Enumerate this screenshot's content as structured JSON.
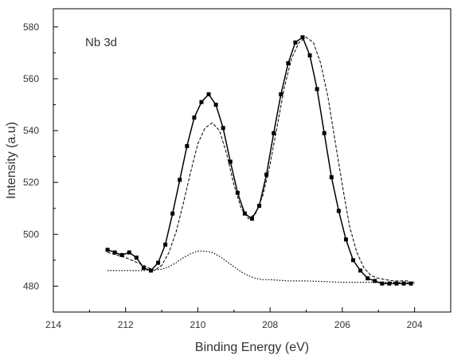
{
  "chart_data": {
    "type": "scatter",
    "title": "",
    "annotation": "Nb 3d",
    "xlabel": "Binding Energy (eV)",
    "ylabel": "Intensity (a.u)",
    "xlim": [
      214,
      203
    ],
    "ylim": [
      470,
      587
    ],
    "x_reversed": true,
    "grid": false,
    "x_ticks": [
      214,
      212,
      210,
      208,
      206,
      204
    ],
    "y_ticks": [
      480,
      500,
      520,
      540,
      560,
      580
    ],
    "series": [
      {
        "style": "markers-with-line",
        "x": [
          212.5,
          212.3,
          212.1,
          211.9,
          211.7,
          211.5,
          211.3,
          211.1,
          210.9,
          210.7,
          210.5,
          210.3,
          210.1,
          209.9,
          209.7,
          209.5,
          209.3,
          209.1,
          208.9,
          208.7,
          208.5,
          208.3,
          208.1,
          207.9,
          207.7,
          207.5,
          207.3,
          207.1,
          206.9,
          206.7,
          206.5,
          206.3,
          206.1,
          205.9,
          205.7,
          205.5,
          205.3,
          205.1,
          204.9,
          204.7,
          204.5,
          204.3,
          204.1
        ],
        "y": [
          494,
          493,
          492,
          493,
          491,
          487,
          486,
          489,
          496,
          508,
          521,
          534,
          545,
          551,
          554,
          550,
          541,
          528,
          516,
          508,
          506,
          511,
          523,
          539,
          554,
          566,
          574,
          576,
          569,
          556,
          539,
          522,
          509,
          498,
          490,
          486,
          483,
          482,
          481,
          481,
          481,
          481,
          481
        ]
      },
      {
        "style": "dashed",
        "x": [
          212.5,
          212.0,
          211.5,
          211.2,
          211.0,
          210.8,
          210.6,
          210.4,
          210.2,
          210.0,
          209.8,
          209.6,
          209.4,
          209.2,
          209.0,
          208.8,
          208.6,
          208.4,
          208.2,
          208.0,
          207.8,
          207.6,
          207.4,
          207.2,
          207.0,
          206.8,
          206.6,
          206.4,
          206.2,
          206.0,
          205.8,
          205.6,
          205.4,
          205.2,
          205.0,
          204.6,
          204.2,
          204.0
        ],
        "y": [
          493,
          491,
          488,
          486,
          488,
          493,
          501,
          512,
          524,
          535,
          541,
          543,
          540,
          531,
          519,
          510,
          506,
          508,
          515,
          527,
          542,
          557,
          568,
          574,
          576,
          574,
          566,
          553,
          536,
          519,
          503,
          493,
          487,
          484,
          483,
          482,
          482,
          481
        ]
      },
      {
        "style": "dotted",
        "x": [
          212.5,
          212.0,
          211.5,
          211.0,
          210.8,
          210.6,
          210.4,
          210.2,
          210.0,
          209.8,
          209.6,
          209.4,
          209.2,
          209.0,
          208.8,
          208.6,
          208.4,
          208.2,
          208.0,
          207.5,
          207.0,
          206.0,
          205.0,
          204.0
        ],
        "y": [
          486,
          486,
          486,
          486.5,
          487.5,
          489,
          491,
          492.5,
          493.5,
          493.5,
          493,
          491.5,
          489.5,
          487.5,
          485.5,
          484,
          483,
          482.5,
          482.5,
          482,
          482,
          481.5,
          481.5,
          481.5
        ]
      }
    ]
  }
}
